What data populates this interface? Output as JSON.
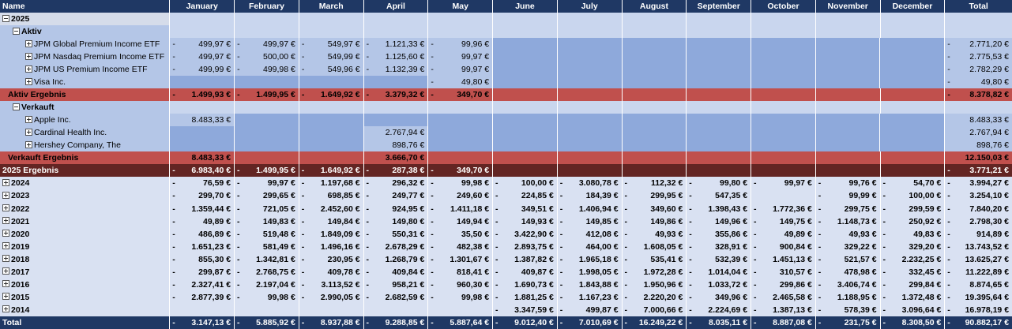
{
  "header": {
    "name": "Name",
    "months": [
      "January",
      "February",
      "March",
      "April",
      "May",
      "June",
      "July",
      "August",
      "September",
      "October",
      "November",
      "December"
    ],
    "total": "Total"
  },
  "year2025": {
    "label": "2025",
    "aktiv": {
      "label": "Aktiv",
      "items": [
        {
          "name": "JPM Global Premium Income ETF",
          "vals": [
            "499,97 €",
            "499,97 €",
            "549,97 €",
            "1.121,33 €",
            "99,96 €",
            "",
            "",
            "",
            "",
            "",
            "",
            ""
          ],
          "total": "2.771,20 €"
        },
        {
          "name": "JPM Nasdaq Premium Income ETF",
          "vals": [
            "499,97 €",
            "500,00 €",
            "549,99 €",
            "1.125,60 €",
            "99,97 €",
            "",
            "",
            "",
            "",
            "",
            "",
            ""
          ],
          "total": "2.775,53 €"
        },
        {
          "name": "JPM US Premium Income ETF",
          "vals": [
            "499,99 €",
            "499,98 €",
            "549,96 €",
            "1.132,39 €",
            "99,97 €",
            "",
            "",
            "",
            "",
            "",
            "",
            ""
          ],
          "total": "2.782,29 €"
        },
        {
          "name": "Visa Inc.",
          "vals": [
            "",
            "",
            "",
            "",
            "49,80 €",
            "",
            "",
            "",
            "",
            "",
            "",
            ""
          ],
          "total": "49,80 €"
        }
      ],
      "result": {
        "label": "Aktiv Ergebnis",
        "vals": [
          "1.499,93 €",
          "1.499,95 €",
          "1.649,92 €",
          "3.379,32 €",
          "349,70 €",
          "",
          "",
          "",
          "",
          "",
          "",
          ""
        ],
        "total": "8.378,82 €"
      }
    },
    "verkauft": {
      "label": "Verkauft",
      "items": [
        {
          "name": "Apple Inc.",
          "vals": [
            "8.483,33 €",
            "",
            "",
            "",
            "",
            "",
            "",
            "",
            "",
            "",
            "",
            ""
          ],
          "total": "8.483,33 €"
        },
        {
          "name": "Cardinal Health Inc.",
          "vals": [
            "",
            "",
            "",
            "2.767,94 €",
            "",
            "",
            "",
            "",
            "",
            "",
            "",
            ""
          ],
          "total": "2.767,94 €"
        },
        {
          "name": "Hershey Company, The",
          "vals": [
            "",
            "",
            "",
            "898,76 €",
            "",
            "",
            "",
            "",
            "",
            "",
            "",
            ""
          ],
          "total": "898,76 €"
        }
      ],
      "result": {
        "label": "Verkauft Ergebnis",
        "vals": [
          "8.483,33 €",
          "",
          "",
          "3.666,70 €",
          "",
          "",
          "",
          "",
          "",
          "",
          "",
          ""
        ],
        "total": "12.150,03 €"
      }
    },
    "result": {
      "label": "2025 Ergebnis",
      "vals": [
        "6.983,40 €",
        "1.499,95 €",
        "1.649,92 €",
        "287,38 €",
        "349,70 €",
        "",
        "",
        "",
        "",
        "",
        "",
        ""
      ],
      "total": "3.771,21 €"
    }
  },
  "years": [
    {
      "label": "2024",
      "vals": [
        "76,59 €",
        "99,97 €",
        "1.197,68 €",
        "296,32 €",
        "99,98 €",
        "100,00 €",
        "3.080,78 €",
        "112,32 €",
        "99,80 €",
        "99,97 €",
        "99,76 €",
        "54,70 €"
      ],
      "total": "3.994,27 €"
    },
    {
      "label": "2023",
      "vals": [
        "299,70 €",
        "299,65 €",
        "698,85 €",
        "249,77 €",
        "249,60 €",
        "224,85 €",
        "184,39 €",
        "299,95 €",
        "547,35 €",
        "",
        "99,99 €",
        "100,00 €"
      ],
      "total": "3.254,10 €"
    },
    {
      "label": "2022",
      "vals": [
        "1.359,44 €",
        "721,05 €",
        "2.452,60 €",
        "924,95 €",
        "1.411,18 €",
        "349,51 €",
        "1.406,94 €",
        "349,60 €",
        "1.398,43 €",
        "1.772,36 €",
        "299,75 €",
        "299,59 €"
      ],
      "total": "7.840,20 €"
    },
    {
      "label": "2021",
      "vals": [
        "49,89 €",
        "149,83 €",
        "149,84 €",
        "149,80 €",
        "149,94 €",
        "149,93 €",
        "149,85 €",
        "149,86 €",
        "149,96 €",
        "149,75 €",
        "1.148,73 €",
        "250,92 €"
      ],
      "total": "2.798,30 €"
    },
    {
      "label": "2020",
      "vals": [
        "486,89 €",
        "519,48 €",
        "1.849,09 €",
        "550,31 €",
        "35,50 €",
        "3.422,90 €",
        "412,08 €",
        "49,93 €",
        "355,86 €",
        "49,89 €",
        "49,93 €",
        "49,83 €"
      ],
      "total": "914,89 €"
    },
    {
      "label": "2019",
      "vals": [
        "1.651,23 €",
        "581,49 €",
        "1.496,16 €",
        "2.678,29 €",
        "482,38 €",
        "2.893,75 €",
        "464,00 €",
        "1.608,05 €",
        "328,91 €",
        "900,84 €",
        "329,22 €",
        "329,20 €"
      ],
      "total": "13.743,52 €"
    },
    {
      "label": "2018",
      "vals": [
        "855,30 €",
        "1.342,81 €",
        "230,95 €",
        "1.268,79 €",
        "1.301,67 €",
        "1.387,82 €",
        "1.965,18 €",
        "535,41 €",
        "532,39 €",
        "1.451,13 €",
        "521,57 €",
        "2.232,25 €"
      ],
      "total": "13.625,27 €"
    },
    {
      "label": "2017",
      "vals": [
        "299,87 €",
        "2.768,75 €",
        "409,78 €",
        "409,84 €",
        "818,41 €",
        "409,87 €",
        "1.998,05 €",
        "1.972,28 €",
        "1.014,04 €",
        "310,57 €",
        "478,98 €",
        "332,45 €"
      ],
      "total": "11.222,89 €"
    },
    {
      "label": "2016",
      "vals": [
        "2.327,41 €",
        "2.197,04 €",
        "3.113,52 €",
        "958,21 €",
        "960,30 €",
        "1.690,73 €",
        "1.843,88 €",
        "1.950,96 €",
        "1.033,72 €",
        "299,86 €",
        "3.406,74 €",
        "299,84 €"
      ],
      "total": "8.874,65 €"
    },
    {
      "label": "2015",
      "vals": [
        "2.877,39 €",
        "99,98 €",
        "2.990,05 €",
        "2.682,59 €",
        "99,98 €",
        "1.881,25 €",
        "1.167,23 €",
        "2.220,20 €",
        "349,96 €",
        "2.465,58 €",
        "1.188,95 €",
        "1.372,48 €"
      ],
      "total": "19.395,64 €"
    },
    {
      "label": "2014",
      "vals": [
        "",
        "",
        "",
        "",
        "",
        "3.347,59 €",
        "499,87 €",
        "7.000,66 €",
        "2.224,69 €",
        "1.387,13 €",
        "578,39 €",
        "3.096,64 €"
      ],
      "total": "16.978,19 €"
    }
  ],
  "grand_total": {
    "label": "Total",
    "vals": [
      "3.147,13 €",
      "5.885,92 €",
      "8.937,88 €",
      "9.288,85 €",
      "5.887,64 €",
      "9.012,40 €",
      "7.010,69 €",
      "16.249,22 €",
      "8.035,11 €",
      "8.887,08 €",
      "231,75 €",
      "8.308,50 €"
    ],
    "total": "90.882,17 €"
  }
}
